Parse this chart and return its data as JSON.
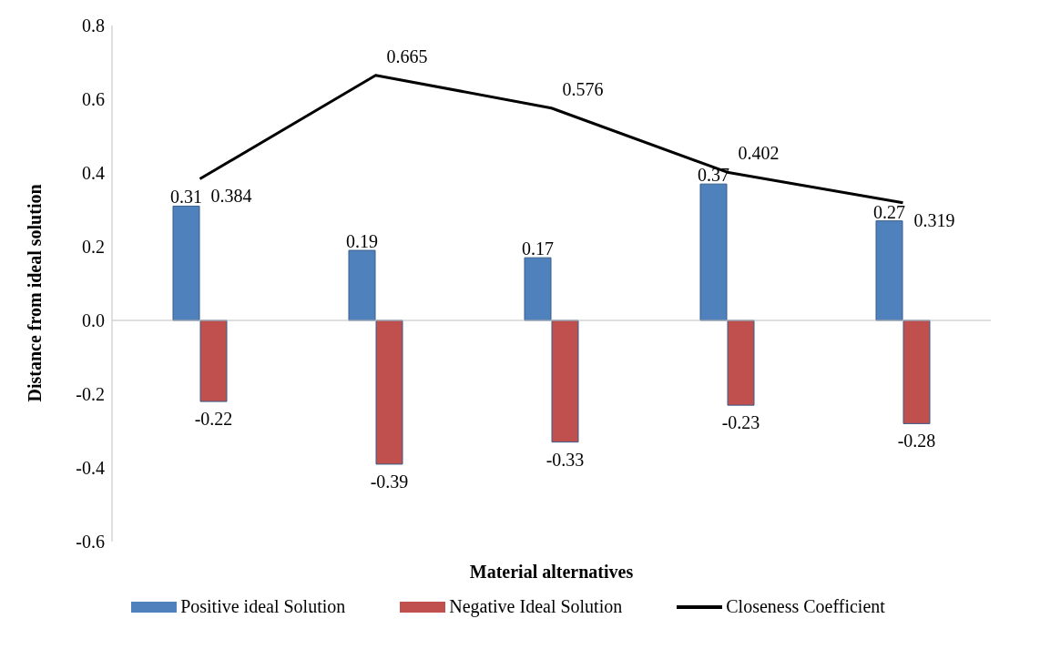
{
  "chart_data": {
    "type": "bar",
    "xlabel": "Material alternatives",
    "ylabel": "Distance from ideal solution",
    "categories": [
      null,
      null,
      null,
      null,
      null
    ],
    "series": [
      {
        "name": "Positive ideal Solution",
        "color": "#4f81bd",
        "values": [
          0.31,
          0.19,
          0.17,
          0.37,
          0.27
        ]
      },
      {
        "name": "Negative Ideal Solution",
        "color": "#c0504d",
        "values": [
          -0.22,
          -0.39,
          -0.33,
          -0.23,
          -0.28
        ]
      },
      {
        "name": "Closeness Coefficient",
        "type": "line",
        "color": "#000000",
        "values": [
          0.384,
          0.665,
          0.576,
          0.402,
          0.319
        ]
      }
    ],
    "ylim": [
      -0.6,
      0.8
    ],
    "yticks": [
      -0.6,
      -0.4,
      -0.2,
      {
        "value": 0,
        "label": "0.0"
      },
      0.2,
      0.4,
      0.6,
      0.8
    ],
    "ref_lines": [
      {
        "axis": "y",
        "value": 0,
        "color": "#bfbfbf"
      }
    ],
    "data_labels": true,
    "legend": "bottom",
    "marker": "none",
    "line_style": "solid",
    "grid": false
  }
}
